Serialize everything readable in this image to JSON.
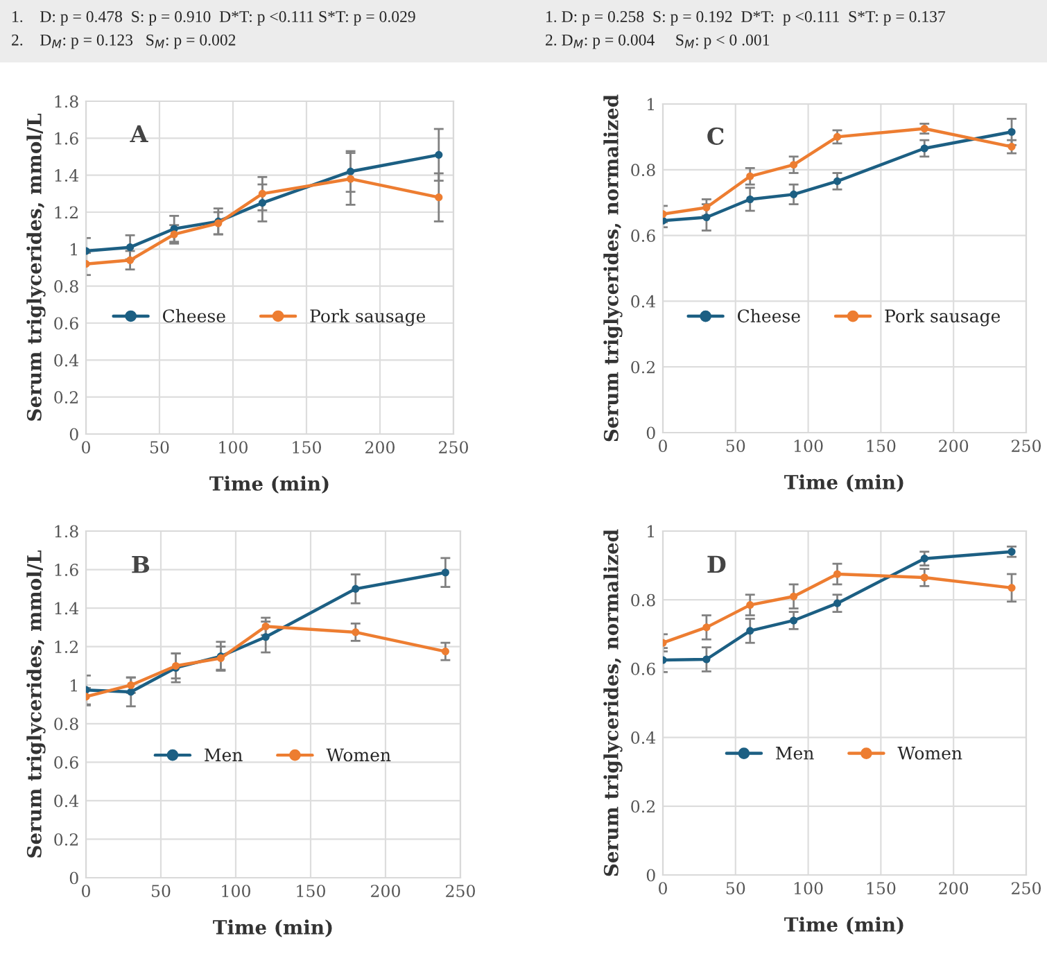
{
  "chart_data": [
    {
      "type": "line",
      "title": "A",
      "xlabel": "Time (min)",
      "ylabel": "Serum triglycerides, mmol/L",
      "x": [
        0,
        30,
        60,
        90,
        120,
        180,
        240
      ],
      "xlim": [
        0,
        250
      ],
      "xticks": [
        0,
        50,
        100,
        150,
        200,
        250
      ],
      "ylim": [
        0,
        1.8
      ],
      "yticks": [
        0,
        0.2,
        0.4,
        0.6,
        0.8,
        1,
        1.2,
        1.4,
        1.6,
        1.8
      ],
      "grid": true,
      "legend": "center",
      "marker": "circle",
      "line_style": "solid",
      "annotations": [
        "1.    D: p = 0.478  S: p = 0.910  D*T: p <0.111 S*T: p = 0.029",
        "2.    D$_{M}$: p = 0.123   S$_{M}$: p = 0.002"
      ],
      "series": [
        {
          "name": "Cheese",
          "color": "#1c5f83",
          "values": [
            0.99,
            1.01,
            1.11,
            1.15,
            1.25,
            1.42,
            1.51
          ],
          "errors": [
            0.07,
            0.065,
            0.07,
            0.07,
            0.1,
            0.11,
            0.14
          ]
        },
        {
          "name": "Pork sausage",
          "color": "#ed7d31",
          "values": [
            0.92,
            0.94,
            1.08,
            1.14,
            1.3,
            1.38,
            1.28
          ],
          "errors": [
            0.06,
            0.05,
            0.05,
            0.06,
            0.09,
            0.14,
            0.13
          ]
        }
      ]
    },
    {
      "type": "line",
      "title": "C",
      "xlabel": "Time (min)",
      "ylabel": "Serum triglycerides, normalized",
      "x": [
        0,
        30,
        60,
        90,
        120,
        180,
        240
      ],
      "xlim": [
        0,
        250
      ],
      "xticks": [
        0,
        50,
        100,
        150,
        200,
        250
      ],
      "ylim": [
        0,
        1
      ],
      "yticks": [
        0,
        0.2,
        0.4,
        0.6,
        0.8,
        1
      ],
      "grid": true,
      "legend": "center",
      "marker": "circle",
      "line_style": "solid",
      "annotations": [
        "1. D: p = 0.258  S: p = 0.192  D*T:  p <0.111  S*T: p = 0.137",
        "2. D$_{M}$: p = 0.004     S$_{M}$: p < 0 .001"
      ],
      "series": [
        {
          "name": "Cheese",
          "color": "#1c5f83",
          "values": [
            0.645,
            0.655,
            0.71,
            0.725,
            0.765,
            0.865,
            0.915
          ],
          "errors": [
            0.02,
            0.04,
            0.035,
            0.03,
            0.025,
            0.025,
            0.04
          ]
        },
        {
          "name": "Pork sausage",
          "color": "#ed7d31",
          "values": [
            0.665,
            0.685,
            0.78,
            0.815,
            0.9,
            0.925,
            0.87
          ],
          "errors": [
            0.025,
            0.025,
            0.025,
            0.025,
            0.02,
            0.015,
            0.02
          ]
        }
      ]
    },
    {
      "type": "line",
      "title": "B",
      "xlabel": "Time (min)",
      "ylabel": "Serum triglycerides, mmol/L",
      "x": [
        0,
        30,
        60,
        90,
        120,
        180,
        240
      ],
      "xlim": [
        0,
        250
      ],
      "xticks": [
        0,
        50,
        100,
        150,
        200,
        250
      ],
      "ylim": [
        0,
        1.8
      ],
      "yticks": [
        0,
        0.2,
        0.4,
        0.6,
        0.8,
        1,
        1.2,
        1.4,
        1.6,
        1.8
      ],
      "grid": true,
      "legend": "center",
      "marker": "circle",
      "line_style": "solid",
      "series": [
        {
          "name": "Men",
          "color": "#1c5f83",
          "values": [
            0.975,
            0.965,
            1.09,
            1.15,
            1.25,
            1.5,
            1.585
          ],
          "errors": [
            0.075,
            0.075,
            0.075,
            0.075,
            0.08,
            0.075,
            0.075
          ]
        },
        {
          "name": "Women",
          "color": "#ed7d31",
          "values": [
            0.94,
            1.0,
            1.1,
            1.14,
            1.305,
            1.275,
            1.175
          ],
          "errors": [
            0.045,
            0.04,
            0.065,
            0.06,
            0.045,
            0.045,
            0.045
          ]
        }
      ]
    },
    {
      "type": "line",
      "title": "D",
      "xlabel": "Time (min)",
      "ylabel": "Serum triglycerides, normalized",
      "x": [
        0,
        30,
        60,
        90,
        120,
        180,
        240
      ],
      "xlim": [
        0,
        250
      ],
      "xticks": [
        0,
        50,
        100,
        150,
        200,
        250
      ],
      "ylim": [
        0,
        1
      ],
      "yticks": [
        0,
        0.2,
        0.4,
        0.6,
        0.8,
        1
      ],
      "grid": true,
      "legend": "center",
      "marker": "circle",
      "line_style": "solid",
      "series": [
        {
          "name": "Men",
          "color": "#1c5f83",
          "values": [
            0.625,
            0.627,
            0.71,
            0.74,
            0.79,
            0.92,
            0.94
          ],
          "errors": [
            0.035,
            0.035,
            0.035,
            0.025,
            0.025,
            0.02,
            0.015
          ]
        },
        {
          "name": "Women",
          "color": "#ed7d31",
          "values": [
            0.675,
            0.72,
            0.785,
            0.81,
            0.875,
            0.865,
            0.835
          ],
          "errors": [
            0.025,
            0.035,
            0.03,
            0.035,
            0.03,
            0.025,
            0.04
          ]
        }
      ]
    }
  ]
}
